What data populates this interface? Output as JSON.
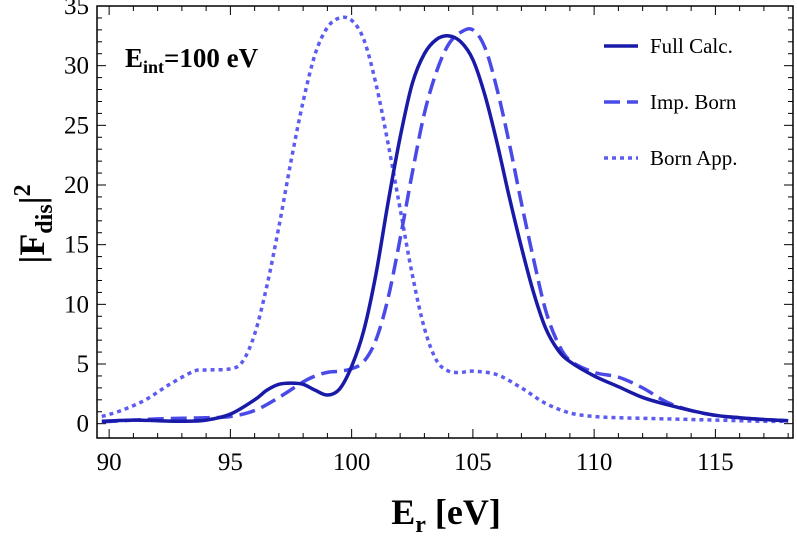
{
  "chart_data": {
    "type": "line",
    "title": "",
    "annotation": {
      "base": "E",
      "sub": "int",
      "rest": "=100 eV"
    },
    "xlabel": {
      "base": "E",
      "sub": "r",
      "rest": " [eV]"
    },
    "ylabel": {
      "pre": "|F",
      "sub": "dis",
      "post": "|",
      "sup": "2"
    },
    "xlim": [
      89.5,
      118.2
    ],
    "ylim": [
      -1.2,
      35
    ],
    "xticks": [
      90,
      95,
      100,
      105,
      110,
      115
    ],
    "yticks": [
      0,
      5,
      10,
      15,
      20,
      25,
      30,
      35
    ],
    "grid": false,
    "legend_position": "top-right",
    "series": [
      {
        "name": "Full Calc.",
        "style": "solid",
        "color": "#1a1aa8",
        "x": [
          89.7,
          91,
          92,
          93,
          94,
          95,
          96,
          96.5,
          97,
          97.5,
          98,
          98.5,
          99,
          99.5,
          100,
          100.5,
          101,
          101.5,
          102,
          102.5,
          103,
          103.5,
          104,
          104.5,
          105,
          105.5,
          106,
          106.5,
          107,
          107.5,
          108,
          108.5,
          109,
          110,
          111,
          112,
          113,
          114,
          115,
          116,
          117,
          118
        ],
        "values": [
          0.2,
          0.3,
          0.25,
          0.2,
          0.3,
          0.8,
          2.0,
          2.8,
          3.3,
          3.4,
          3.3,
          2.8,
          2.4,
          2.9,
          4.8,
          7.8,
          12.5,
          18.5,
          24.0,
          28.5,
          31.0,
          32.2,
          32.5,
          32.0,
          30.5,
          27.5,
          23.5,
          19.0,
          14.8,
          11.0,
          8.0,
          6.2,
          5.2,
          4.0,
          3.1,
          2.2,
          1.6,
          1.1,
          0.7,
          0.5,
          0.35,
          0.25
        ]
      },
      {
        "name": "Imp. Born",
        "style": "dashed",
        "color": "#4a4ae8",
        "x": [
          89.7,
          91,
          92,
          93,
          94,
          95,
          96,
          97,
          98,
          98.5,
          99,
          99.5,
          100,
          100.5,
          101,
          101.5,
          102,
          102.5,
          103,
          103.5,
          104,
          104.5,
          105,
          105.5,
          106,
          106.5,
          107,
          107.5,
          108,
          108.5,
          109,
          110,
          111,
          112,
          113,
          114,
          115,
          116,
          117,
          118
        ],
        "values": [
          0.15,
          0.3,
          0.4,
          0.45,
          0.5,
          0.6,
          1.1,
          2.2,
          3.5,
          4.0,
          4.3,
          4.4,
          4.6,
          5.2,
          7.0,
          10.5,
          15.5,
          21.0,
          26.0,
          29.5,
          31.8,
          32.8,
          33.0,
          31.5,
          28.0,
          23.5,
          18.5,
          13.8,
          9.5,
          6.8,
          5.3,
          4.3,
          3.9,
          3.0,
          1.8,
          1.1,
          0.7,
          0.5,
          0.35,
          0.25
        ]
      },
      {
        "name": "Born App.",
        "style": "dotted",
        "color": "#5c5cf0",
        "x": [
          89.7,
          90.5,
          91.5,
          92.5,
          93.5,
          94,
          95,
          95.5,
          96,
          96.5,
          97,
          97.5,
          98,
          98.5,
          99,
          99.5,
          100,
          100.5,
          101,
          101.5,
          102,
          102.5,
          103,
          103.5,
          104,
          104.5,
          105,
          106,
          107,
          108,
          109,
          110,
          111,
          112,
          113,
          114,
          115,
          116,
          117,
          118
        ],
        "values": [
          0.6,
          1.1,
          2.0,
          3.3,
          4.4,
          4.5,
          4.6,
          5.2,
          7.5,
          11.5,
          16.5,
          22.0,
          27.0,
          31.0,
          33.2,
          34.0,
          33.8,
          32.2,
          28.5,
          23.5,
          18.0,
          12.5,
          8.0,
          5.3,
          4.4,
          4.3,
          4.4,
          4.1,
          3.0,
          1.7,
          0.9,
          0.6,
          0.5,
          0.45,
          0.4,
          0.35,
          0.3,
          0.25,
          0.2,
          0.2
        ]
      }
    ]
  }
}
